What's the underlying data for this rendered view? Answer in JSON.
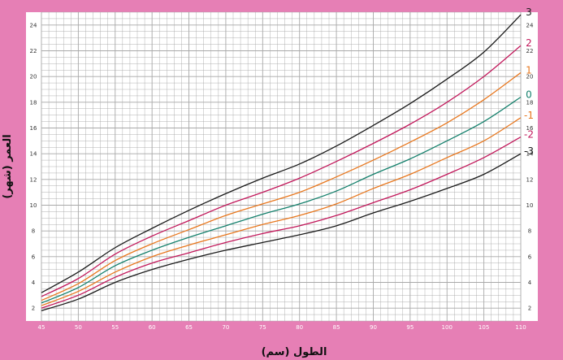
{
  "chart_data": {
    "type": "line",
    "title": "",
    "xlabel": "الطول (سم)",
    "ylabel": "العمر (شهر)",
    "xlim": [
      45,
      110
    ],
    "ylim": [
      1,
      25
    ],
    "x_ticks": [
      "45",
      "50",
      "55",
      "60",
      "65",
      "70",
      "75",
      "80",
      "85",
      "90",
      "95",
      "100",
      "105",
      "110"
    ],
    "y_ticks": [
      "2",
      "4",
      "6",
      "8",
      "10",
      "12",
      "14",
      "16",
      "18",
      "20",
      "22",
      "24"
    ],
    "grid": true,
    "x": [
      45,
      50,
      55,
      60,
      65,
      70,
      75,
      80,
      85,
      90,
      95,
      100,
      105,
      110
    ],
    "series": [
      {
        "name": "3",
        "color": "#1a1a1a",
        "values": [
          3.2,
          4.8,
          6.7,
          8.2,
          9.6,
          10.9,
          12.1,
          13.2,
          14.6,
          16.2,
          17.9,
          19.8,
          21.9,
          24.8
        ]
      },
      {
        "name": "2",
        "color": "#c2185b",
        "values": [
          2.9,
          4.3,
          6.2,
          7.6,
          8.8,
          10.0,
          11.0,
          12.1,
          13.4,
          14.8,
          16.3,
          18.0,
          20.0,
          22.4
        ]
      },
      {
        "name": "1",
        "color": "#e8771e",
        "values": [
          2.6,
          3.9,
          5.7,
          7.0,
          8.1,
          9.2,
          10.1,
          11.0,
          12.2,
          13.5,
          14.9,
          16.4,
          18.2,
          20.3
        ]
      },
      {
        "name": "0",
        "color": "#14806c",
        "values": [
          2.4,
          3.6,
          5.3,
          6.5,
          7.5,
          8.4,
          9.3,
          10.1,
          11.1,
          12.4,
          13.6,
          15.0,
          16.5,
          18.4
        ]
      },
      {
        "name": "-1",
        "color": "#e8771e",
        "values": [
          2.2,
          3.3,
          4.8,
          6.0,
          6.9,
          7.7,
          8.5,
          9.2,
          10.1,
          11.3,
          12.4,
          13.7,
          15.0,
          16.8
        ]
      },
      {
        "name": "-2",
        "color": "#c2185b",
        "values": [
          2.0,
          3.0,
          4.4,
          5.5,
          6.3,
          7.1,
          7.8,
          8.4,
          9.2,
          10.2,
          11.2,
          12.4,
          13.7,
          15.3
        ]
      },
      {
        "name": "-3",
        "color": "#1a1a1a",
        "values": [
          1.8,
          2.7,
          4.0,
          5.0,
          5.8,
          6.5,
          7.1,
          7.7,
          8.4,
          9.4,
          10.3,
          11.3,
          12.4,
          14.0
        ]
      }
    ]
  },
  "colors": {
    "frame": "#e67fb5",
    "plot_background": "#ffffff",
    "grid_line": "#a8a8a8"
  }
}
